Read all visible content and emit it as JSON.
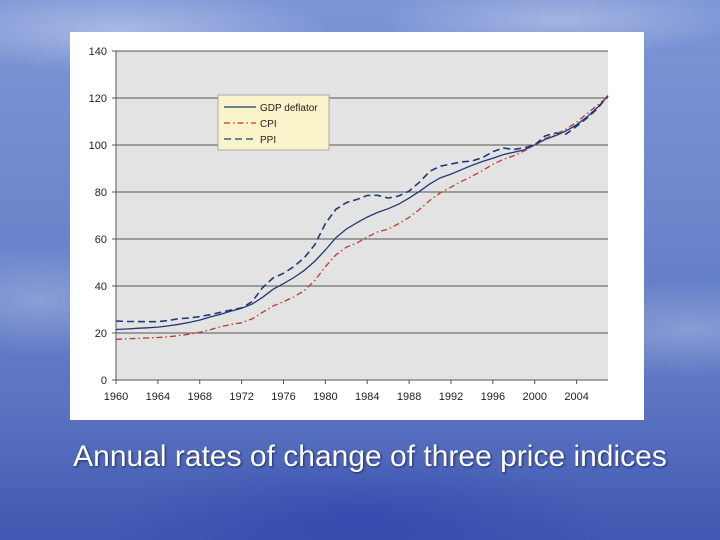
{
  "caption": "Annual rates of change of three price indices",
  "chart_data": {
    "type": "line",
    "title": "",
    "xlabel": "",
    "ylabel": "",
    "xlim": [
      1960,
      2007
    ],
    "ylim": [
      0,
      140
    ],
    "grid": true,
    "legend_position": "top-left",
    "x_ticks": [
      1960,
      1964,
      1968,
      1972,
      1976,
      1980,
      1984,
      1988,
      1992,
      1996,
      2000,
      2004
    ],
    "y_ticks": [
      0,
      20,
      40,
      60,
      80,
      100,
      120,
      140
    ],
    "x": [
      1960,
      1961,
      1962,
      1963,
      1964,
      1965,
      1966,
      1967,
      1968,
      1969,
      1970,
      1971,
      1972,
      1973,
      1974,
      1975,
      1976,
      1977,
      1978,
      1979,
      1980,
      1981,
      1982,
      1983,
      1984,
      1985,
      1986,
      1987,
      1988,
      1989,
      1990,
      1991,
      1992,
      1993,
      1994,
      1995,
      1996,
      1997,
      1998,
      1999,
      2000,
      2001,
      2002,
      2003,
      2004,
      2005,
      2006,
      2007
    ],
    "series": [
      {
        "name": "GDP deflator",
        "color": "#1f3a7a",
        "dash": "solid",
        "values": [
          21.5,
          21.7,
          22.0,
          22.2,
          22.5,
          23.0,
          23.7,
          24.5,
          25.5,
          26.8,
          28.0,
          29.3,
          30.5,
          32.3,
          35.2,
          38.6,
          41.0,
          43.6,
          46.7,
          50.6,
          55.3,
          60.5,
          64.2,
          66.9,
          69.3,
          71.3,
          72.9,
          74.8,
          77.4,
          80.3,
          83.5,
          86.1,
          87.6,
          89.5,
          91.3,
          93.0,
          94.4,
          95.9,
          96.9,
          97.9,
          100.0,
          102.4,
          104.0,
          106.0,
          108.6,
          112.0,
          116.0,
          120.8
        ]
      },
      {
        "name": "CPI",
        "color": "#c0392b",
        "dash": "dashdot",
        "values": [
          17.3,
          17.5,
          17.7,
          17.9,
          18.1,
          18.4,
          18.9,
          19.5,
          20.3,
          21.4,
          22.7,
          23.6,
          24.4,
          26.0,
          28.8,
          31.5,
          33.3,
          35.4,
          38.1,
          42.4,
          48.2,
          53.2,
          56.5,
          58.3,
          60.8,
          63.0,
          64.2,
          66.5,
          69.2,
          72.6,
          76.5,
          79.7,
          82.1,
          84.5,
          86.7,
          89.1,
          91.8,
          93.9,
          95.4,
          97.5,
          100.0,
          102.8,
          104.5,
          106.8,
          109.7,
          113.4,
          117.0,
          120.5
        ]
      },
      {
        "name": "PPI",
        "color": "#1f3a7a",
        "dash": "dashed",
        "values": [
          25.1,
          24.9,
          24.9,
          24.8,
          24.8,
          25.3,
          26.1,
          26.4,
          27.0,
          27.8,
          28.8,
          29.8,
          30.7,
          33.3,
          39.3,
          43.4,
          45.4,
          48.3,
          52.1,
          57.6,
          66.6,
          72.6,
          75.5,
          76.8,
          78.5,
          78.6,
          77.4,
          78.3,
          80.4,
          84.2,
          88.9,
          91.0,
          91.9,
          92.8,
          93.2,
          94.6,
          97.2,
          98.7,
          98.1,
          98.8,
          100.0,
          103.9,
          105.1,
          104.7,
          108.0,
          111.5,
          115.5,
          121.0
        ]
      }
    ]
  }
}
